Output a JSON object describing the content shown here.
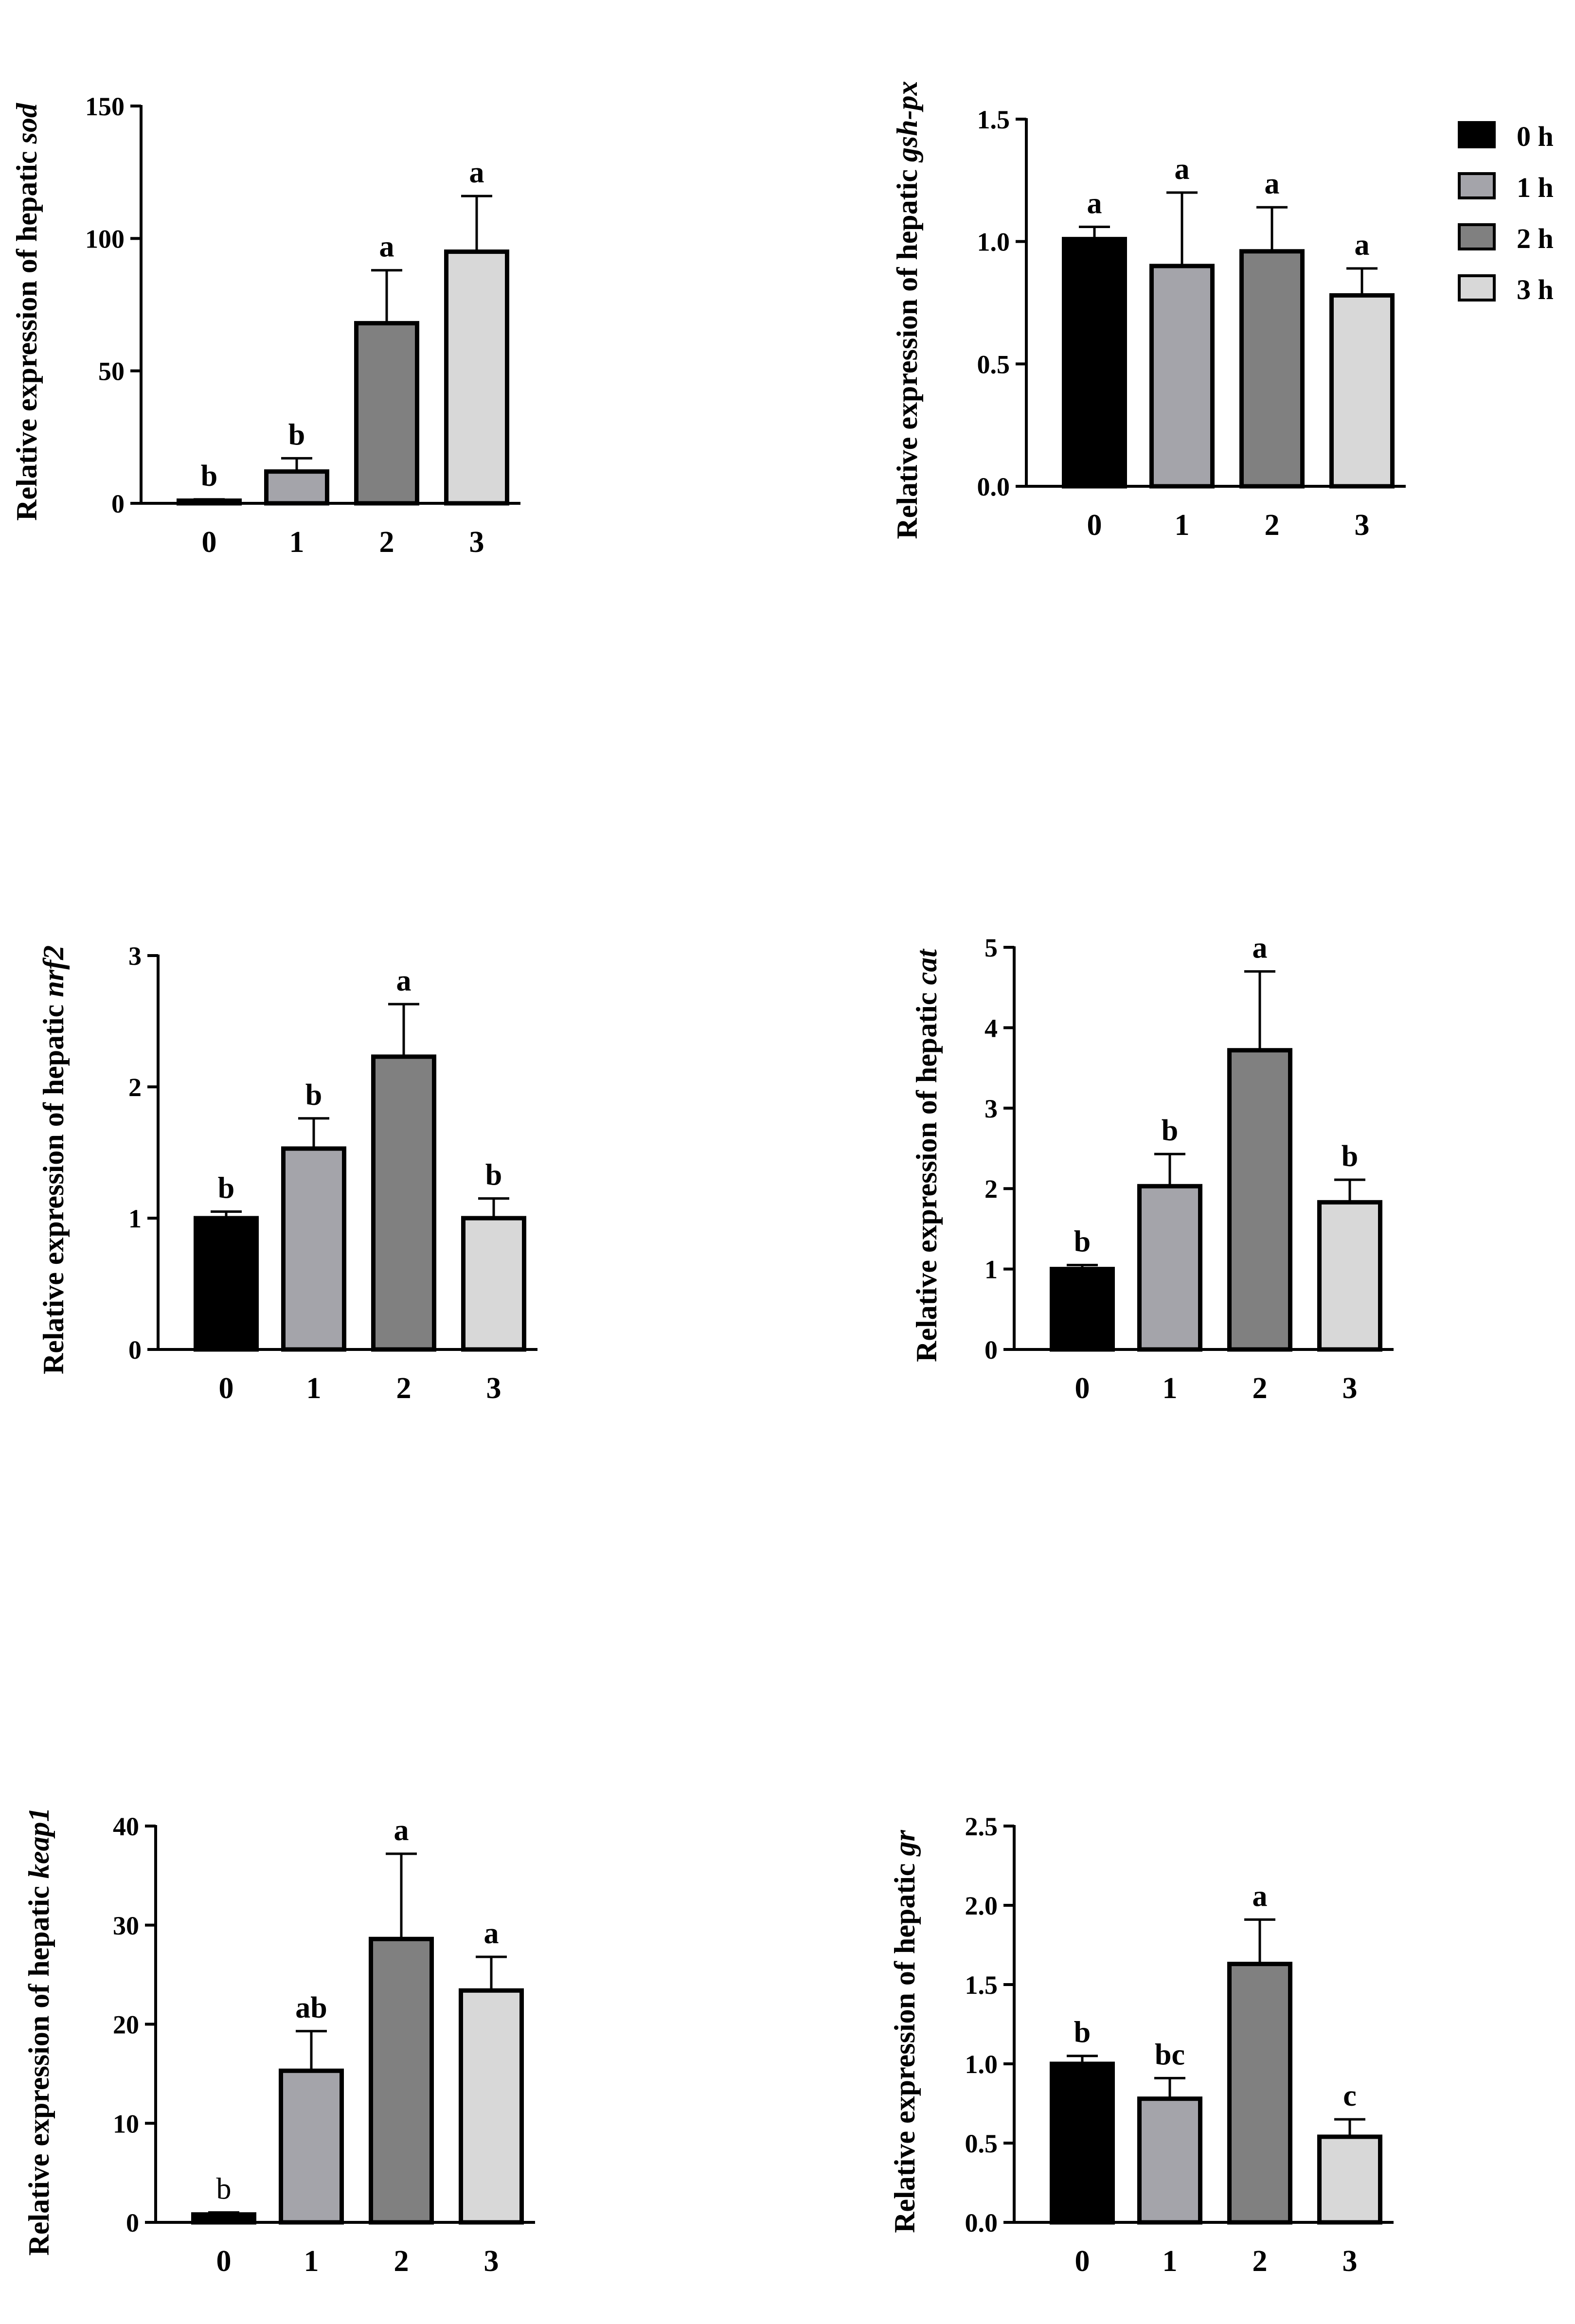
{
  "colors": {
    "c0": "#000000",
    "c1": "#a4a4aa",
    "c2": "#808080",
    "c3": "#d8d8d8"
  },
  "legend": [
    {
      "label": "0 h",
      "color": "#000000"
    },
    {
      "label": "1 h",
      "color": "#a4a4aa"
    },
    {
      "label": "2 h",
      "color": "#808080"
    },
    {
      "label": "3 h",
      "color": "#d8d8d8"
    }
  ],
  "chart_data": [
    {
      "type": "bar",
      "ylabel_prefix": "Relative expression of hepatic ",
      "gene": "sod",
      "categories": [
        "0",
        "1",
        "2",
        "3"
      ],
      "values": [
        1,
        12,
        68,
        95
      ],
      "errors": [
        0.5,
        5,
        20,
        21
      ],
      "ylim": [
        0,
        150
      ],
      "yticks": [
        "0",
        "50",
        "100",
        "150"
      ],
      "sig": [
        "b",
        "b",
        "a",
        "a"
      ]
    },
    {
      "type": "bar",
      "ylabel_prefix": "Relative expression of hepatic ",
      "gene": "gsh-px",
      "categories": [
        "0",
        "1",
        "2",
        "3"
      ],
      "values": [
        1.01,
        0.9,
        0.96,
        0.78
      ],
      "errors": [
        0.05,
        0.3,
        0.18,
        0.11
      ],
      "ylim": [
        0,
        1.5
      ],
      "yticks": [
        "0.0",
        "0.5",
        "1.0",
        "1.5"
      ],
      "sig": [
        "a",
        "a",
        "a",
        "a"
      ]
    },
    {
      "type": "bar",
      "ylabel_prefix": "Relative expression of hepatic ",
      "gene": "nrf2",
      "categories": [
        "0",
        "1",
        "2",
        "3"
      ],
      "values": [
        1.0,
        1.53,
        2.23,
        1.0
      ],
      "errors": [
        0.05,
        0.23,
        0.4,
        0.15
      ],
      "ylim": [
        0,
        3
      ],
      "yticks": [
        "0",
        "1",
        "2",
        "3"
      ],
      "sig": [
        "b",
        "b",
        "a",
        "b"
      ]
    },
    {
      "type": "bar",
      "ylabel_prefix": "Relative expression of hepatic ",
      "gene": "cat",
      "categories": [
        "0",
        "1",
        "2",
        "3"
      ],
      "values": [
        1.0,
        2.03,
        3.72,
        1.83
      ],
      "errors": [
        0.05,
        0.4,
        0.98,
        0.28
      ],
      "ylim": [
        0,
        5
      ],
      "yticks": [
        "0",
        "1",
        "2",
        "3",
        "4",
        "5"
      ],
      "sig": [
        "b",
        "b",
        "a",
        "b"
      ]
    },
    {
      "type": "bar",
      "ylabel_prefix": "Relative expression of hepatic ",
      "gene": "keap1",
      "categories": [
        "0",
        "1",
        "2",
        "3"
      ],
      "values": [
        0.8,
        15.3,
        28.6,
        23.4
      ],
      "errors": [
        0.2,
        4,
        8.6,
        3.4
      ],
      "ylim": [
        0,
        40
      ],
      "yticks": [
        "0",
        "10",
        "20",
        "30",
        "40"
      ],
      "sig": [
        "b",
        "ab",
        "a",
        "a"
      ]
    },
    {
      "type": "bar",
      "ylabel_prefix": "Relative expression of hepatic ",
      "gene": "gr",
      "categories": [
        "0",
        "1",
        "2",
        "3"
      ],
      "values": [
        1.0,
        0.78,
        1.63,
        0.54
      ],
      "errors": [
        0.05,
        0.13,
        0.28,
        0.11
      ],
      "ylim": [
        0,
        2.5
      ],
      "yticks": [
        "0.0",
        "0.5",
        "1.0",
        "1.5",
        "2.0",
        "2.5"
      ],
      "sig": [
        "b",
        "bc",
        "a",
        "c"
      ]
    }
  ]
}
